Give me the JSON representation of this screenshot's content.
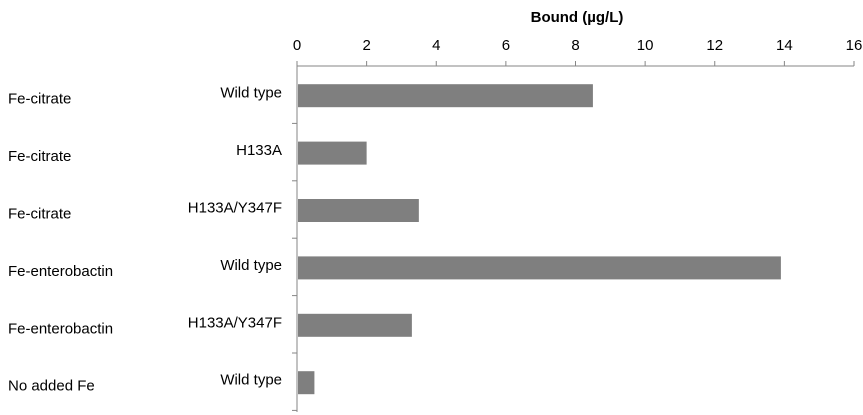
{
  "chart_data": {
    "type": "bar",
    "orientation": "horizontal",
    "xlabel": "Bound  (µg/L)",
    "xlim": [
      0,
      16
    ],
    "x_ticks": [
      "0",
      "2",
      "4",
      "6",
      "8",
      "10",
      "12",
      "14",
      "16"
    ],
    "axis_position": "top",
    "grid": false,
    "categories": [
      {
        "group": "Fe-citrate",
        "label": "Wild type"
      },
      {
        "group": "Fe-citrate",
        "label": "H133A"
      },
      {
        "group": "Fe-citrate",
        "label": "H133A/Y347F"
      },
      {
        "group": "Fe-enterobactin",
        "label": "Wild type"
      },
      {
        "group": "Fe-enterobactin",
        "label": "H133A/Y347F"
      },
      {
        "group": "No added Fe",
        "label": "Wild type"
      }
    ],
    "values": [
      8.5,
      2.0,
      3.5,
      13.9,
      3.3,
      0.5
    ],
    "bar_color": "#7f7f7f",
    "axis_color": "#868686"
  }
}
